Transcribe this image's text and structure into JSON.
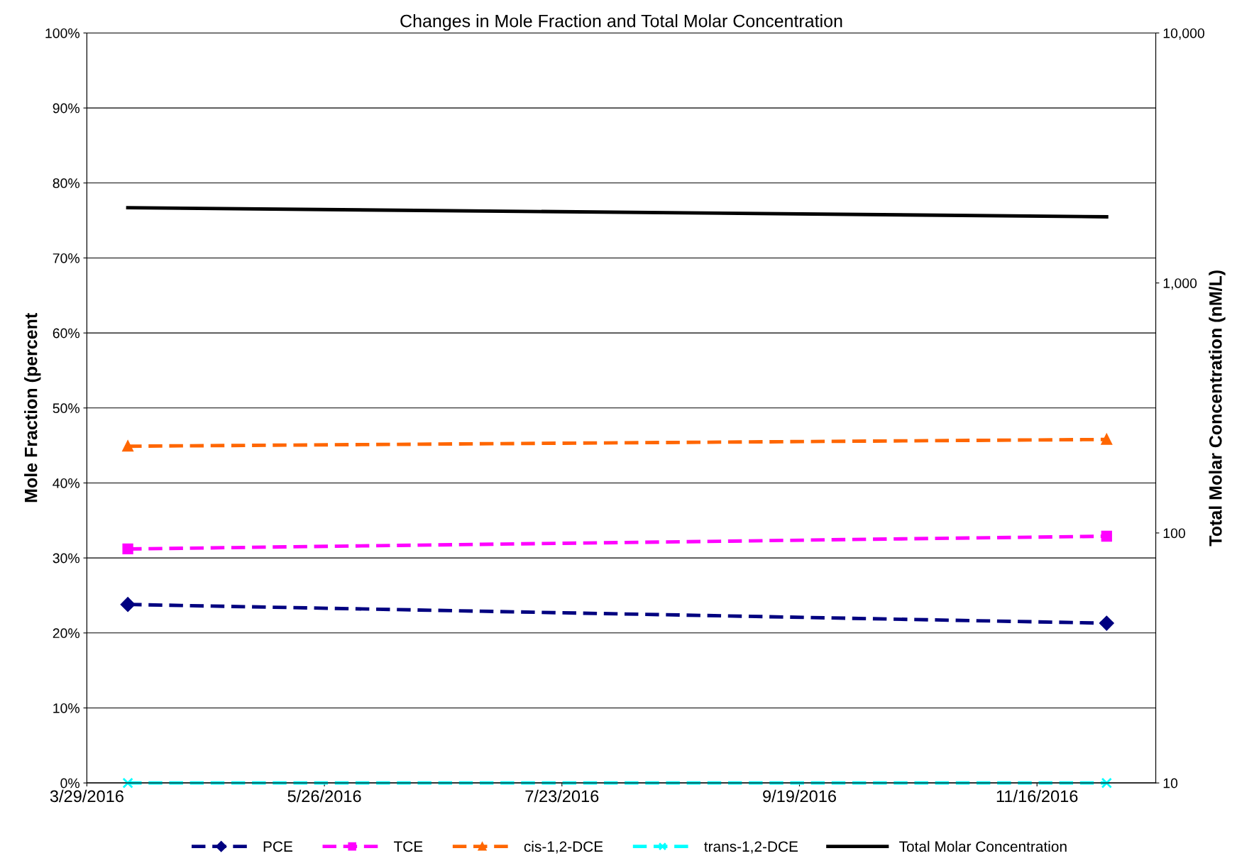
{
  "chart_data": {
    "type": "line",
    "title": "Changes in Mole Fraction and Total Molar Concentration",
    "ylabel": "Mole Fraction (percent",
    "y2label": "Total Molar Concentration (nM/L)",
    "x": [
      "2016-04-08",
      "2016-12-03"
    ],
    "series": [
      {
        "name": "PCE",
        "color": "#000080",
        "values": [
          23.8,
          21.3
        ],
        "marker": "diamond",
        "line_style": "dashed"
      },
      {
        "name": "TCE",
        "color": "#ff00ff",
        "values": [
          31.2,
          32.9
        ],
        "marker": "square",
        "line_style": "dashed"
      },
      {
        "name": "cis-1,2-DCE",
        "color": "#ff6600",
        "values": [
          44.9,
          45.8
        ],
        "marker": "triangle",
        "line_style": "dashed"
      },
      {
        "name": "trans-1,2-DCE",
        "color": "#00ffff",
        "values": [
          0,
          0
        ],
        "marker": "cross",
        "line_style": "dashed"
      },
      {
        "name": "Total Molar Concentration",
        "color": "#000000",
        "values": [
          2000,
          1840
        ],
        "marker": "none",
        "line_style": "solid",
        "axis": "y2"
      }
    ],
    "xlim": [
      "2016-03-29",
      "2016-12-15"
    ],
    "xticks": [
      {
        "value": "2016-03-29",
        "label": "3/29/2016"
      },
      {
        "value": "2016-05-26",
        "label": "5/26/2016"
      },
      {
        "value": "2016-07-23",
        "label": "7/23/2016"
      },
      {
        "value": "2016-09-19",
        "label": "9/19/2016"
      },
      {
        "value": "2016-11-16",
        "label": "11/16/2016"
      }
    ],
    "ylim": [
      0,
      100
    ],
    "yticks": [
      {
        "value": 0,
        "label": "0%"
      },
      {
        "value": 10,
        "label": "10%"
      },
      {
        "value": 20,
        "label": "20%"
      },
      {
        "value": 30,
        "label": "30%"
      },
      {
        "value": 40,
        "label": "40%"
      },
      {
        "value": 50,
        "label": "50%"
      },
      {
        "value": 60,
        "label": "60%"
      },
      {
        "value": 70,
        "label": "70%"
      },
      {
        "value": 80,
        "label": "80%"
      },
      {
        "value": 90,
        "label": "90%"
      },
      {
        "value": 100,
        "label": "100%"
      }
    ],
    "log": "y2",
    "y2lim": [
      10,
      10000
    ],
    "y2ticks": [
      {
        "value": 10,
        "label": "10"
      },
      {
        "value": 100,
        "label": "100"
      },
      {
        "value": 1000,
        "label": "1,000"
      },
      {
        "value": 10000,
        "label": "10,000"
      }
    ],
    "grid": "y",
    "legend": "bottom"
  }
}
